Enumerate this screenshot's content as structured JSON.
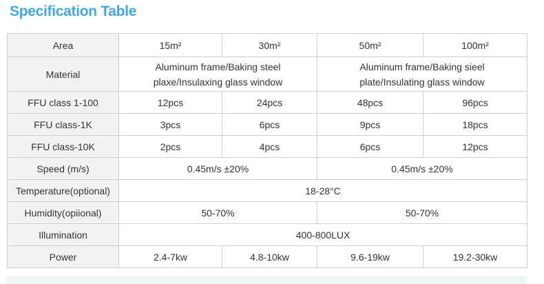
{
  "header": {
    "title": "Specification Table"
  },
  "table": {
    "rows": [
      [
        "Area",
        "15m²",
        "30m²",
        "50m²",
        "100m²"
      ],
      [
        "Material",
        "Aluminum frame/Baking steel plaxe/Insulaxing glass window",
        "Aluminum frame/Baking sieel plate/Insulating glass window"
      ],
      [
        "FFU class 1-100",
        "12pcs",
        "24pcs",
        "48pcs",
        "96pcs"
      ],
      [
        "FFU class-1K",
        "3pcs",
        "6pcs",
        "9pcs",
        "18pcs"
      ],
      [
        "FFU class-10K",
        "2pcs",
        "4pcs",
        "6pcs",
        "12pcs"
      ],
      [
        "Speed (m/s)",
        "0.45m/s ±20%",
        "0.45m/s ±20%"
      ],
      [
        "Temperature(optional)",
        "18-28°C"
      ],
      [
        "Humidity(opiional)",
        "50-70%",
        "50-70%"
      ],
      [
        "Illumination",
        "400-800LUX"
      ],
      [
        "Power",
        "2.4-7kw",
        "4.8-10kw",
        "9.6-19kw",
        "19.2-30kw"
      ]
    ]
  }
}
